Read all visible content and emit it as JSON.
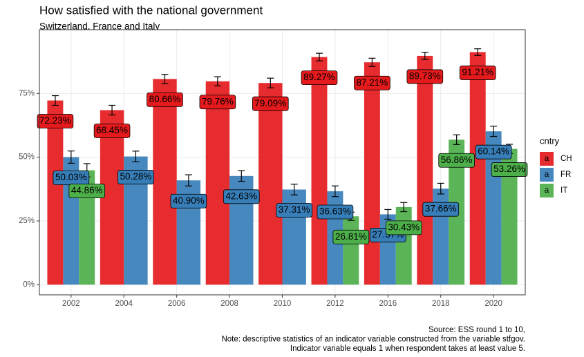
{
  "chart_data": {
    "type": "bar",
    "title": "How satisfied with the national government",
    "subtitle": "Switzerland, France and Italy",
    "caption": [
      "Source: ESS round 1 to 10,",
      "Note: descriptive statistics of an indicator variable constructed from the variable stfgov.",
      "Indicator variable equals 1 when respondent takes at least value 5."
    ],
    "categories": [
      "2002",
      "2004",
      "2006",
      "2008",
      "2010",
      "2012",
      "2016",
      "2018",
      "2020"
    ],
    "series": [
      {
        "name": "CH",
        "color": "#e41a1c",
        "values": [
          72.23,
          68.45,
          80.66,
          79.76,
          79.09,
          89.27,
          87.21,
          89.73,
          91.21
        ],
        "errors": [
          1.9,
          1.9,
          1.8,
          1.8,
          1.9,
          1.5,
          1.6,
          1.4,
          1.3
        ],
        "value_labels": [
          "72.23%",
          "68.45%",
          "80.66%",
          "79.76%",
          "79.09%",
          "89.27%",
          "87.21%",
          "89.73%",
          "91.21%"
        ]
      },
      {
        "name": "FR",
        "color": "#377eb8",
        "values": [
          50.03,
          50.28,
          40.9,
          42.63,
          37.31,
          36.63,
          27.57,
          37.66,
          60.14
        ],
        "errors": [
          2.4,
          2.1,
          2.2,
          2.1,
          2.1,
          2.1,
          1.9,
          2.1,
          2.0
        ],
        "value_labels": [
          "50.03%",
          "50.28%",
          "40.90%",
          "42.63%",
          "37.31%",
          "36.63%",
          "27.57%",
          "37.66%",
          "60.14%"
        ]
      },
      {
        "name": "IT",
        "color": "#4daf4a",
        "values": [
          44.86,
          null,
          null,
          null,
          null,
          26.81,
          30.43,
          56.86,
          53.26
        ],
        "errors": [
          2.6,
          null,
          null,
          null,
          null,
          1.6,
          1.8,
          1.9,
          1.8
        ],
        "value_labels": [
          "44.86%",
          null,
          null,
          null,
          null,
          "26.81%",
          "30.43%",
          "56.86%",
          "53.26%"
        ]
      }
    ],
    "ylim": [
      -4,
      100
    ],
    "yticks": [
      {
        "value": 0,
        "label": "0%"
      },
      {
        "value": 25,
        "label": "25%"
      },
      {
        "value": 50,
        "label": "50%"
      },
      {
        "value": 75,
        "label": "75%"
      }
    ],
    "grid": true,
    "legend_title": "cntry",
    "legend_key_label": "a",
    "legend_position": "right"
  }
}
